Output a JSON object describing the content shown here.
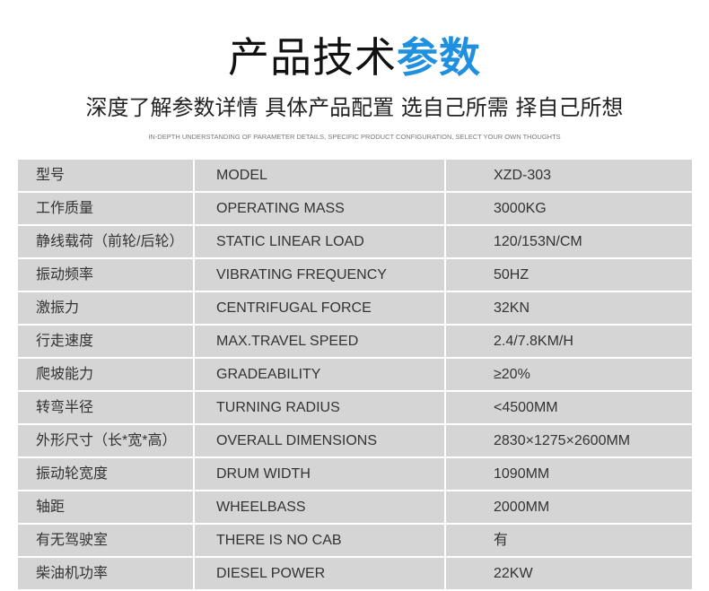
{
  "header": {
    "title_main": "产品技术",
    "title_highlight": "参数",
    "subtitle": "深度了解参数详情  具体产品配置 选自己所需 择自己所想",
    "subtitle_en": "IN-DEPTH UNDERSTANDING OF PARAMETER DETAILS, SPECIFIC PRODUCT CONFIGURATION, SELECT YOUR OWN THOUGHTS",
    "accent": "#1f8fe0"
  },
  "rows": [
    {
      "cn": "型号",
      "en": "MODEL",
      "value": "XZD-303"
    },
    {
      "cn": "工作质量",
      "en": "OPERATING MASS",
      "value": "3000KG"
    },
    {
      "cn": "静线载荷（前轮/后轮）",
      "en": "STATIC LINEAR LOAD",
      "value": "120/153N/CM"
    },
    {
      "cn": "振动频率",
      "en": "VIBRATING FREQUENCY",
      "value": "50HZ"
    },
    {
      "cn": "激振力",
      "en": "CENTRIFUGAL FORCE",
      "value": "32KN"
    },
    {
      "cn": "行走速度",
      "en": "MAX.TRAVEL SPEED",
      "value": "2.4/7.8KM/H"
    },
    {
      "cn": "爬坡能力",
      "en": "GRADEABILITY",
      "value": "≥20%"
    },
    {
      "cn": "转弯半径",
      "en": "TURNING RADIUS",
      "value": "<4500MM"
    },
    {
      "cn": "外形尺寸（长*宽*高）",
      "en": "OVERALL DIMENSIONS",
      "value": "2830×1275×2600MM"
    },
    {
      "cn": "振动轮宽度",
      "en": "DRUM WIDTH",
      "value": "1090MM"
    },
    {
      "cn": "轴距",
      "en": "WHEELBASS",
      "value": "2000MM"
    },
    {
      "cn": "有无驾驶室",
      "en": "THERE IS NO CAB",
      "value": "有"
    },
    {
      "cn": "柴油机功率",
      "en": "DIESEL POWER",
      "value": "22KW"
    }
  ]
}
